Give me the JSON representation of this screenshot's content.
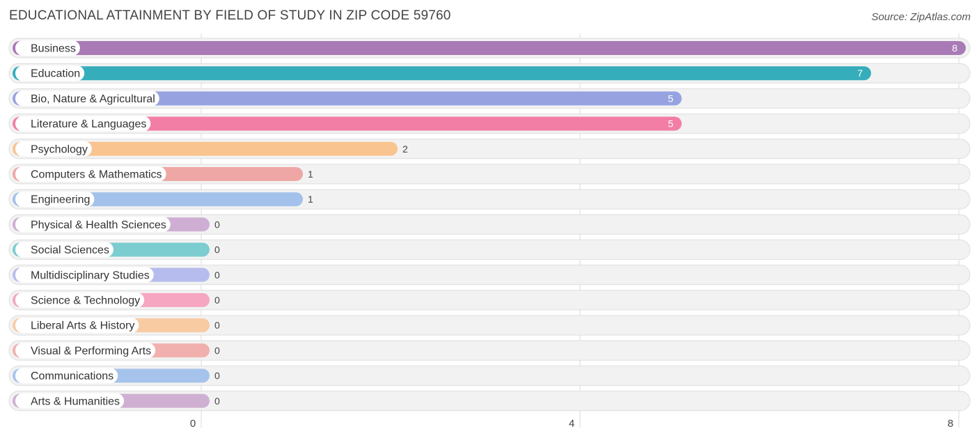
{
  "header": {
    "title": "EDUCATIONAL ATTAINMENT BY FIELD OF STUDY IN ZIP CODE 59760",
    "source": "Source: ZipAtlas.com"
  },
  "chart_data": {
    "type": "bar",
    "orientation": "horizontal",
    "title": "EDUCATIONAL ATTAINMENT BY FIELD OF STUDY IN ZIP CODE 59760",
    "xlabel": "",
    "ylabel": "",
    "xlim": [
      0,
      8
    ],
    "x_ticks": [
      "0",
      "4",
      "8"
    ],
    "grid": true,
    "categories": [
      "Business",
      "Education",
      "Bio, Nature & Agricultural",
      "Literature & Languages",
      "Psychology",
      "Computers & Mathematics",
      "Engineering",
      "Physical & Health Sciences",
      "Social Sciences",
      "Multidisciplinary Studies",
      "Science & Technology",
      "Liberal Arts & History",
      "Visual & Performing Arts",
      "Communications",
      "Arts & Humanities"
    ],
    "values": [
      8,
      7,
      5,
      5,
      2,
      1,
      1,
      0,
      0,
      0,
      0,
      0,
      0,
      0,
      0
    ],
    "colors": [
      "#a97ab5",
      "#35adbb",
      "#97a3e1",
      "#f27ea5",
      "#f9c48f",
      "#efa7a5",
      "#a3c1ea",
      "#cfaed4",
      "#7bcdd0",
      "#b6bdee",
      "#f6a6c1",
      "#f9cba3",
      "#f1b0ad",
      "#a6c4eb",
      "#cfb0d3"
    ]
  }
}
